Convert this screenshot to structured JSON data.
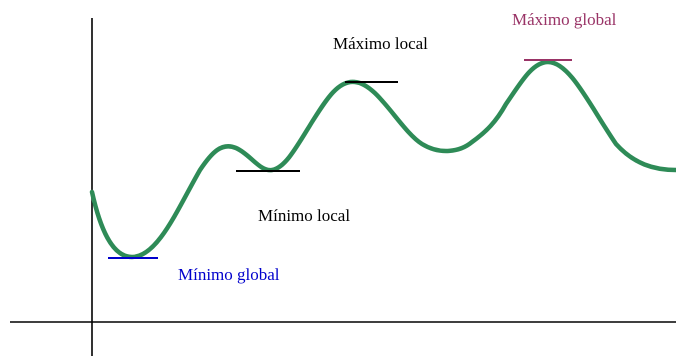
{
  "labels": {
    "max_global": "Máximo global",
    "max_local": "Máximo local",
    "min_local": "Mínimo local",
    "min_global": "Mínimo global"
  },
  "colors": {
    "background": "#ffffff",
    "axis": "#000000",
    "curve": "#2e8b57",
    "max_global": "#993366",
    "max_local": "#000000",
    "min_local": "#000000",
    "min_global": "#0000cc"
  }
}
